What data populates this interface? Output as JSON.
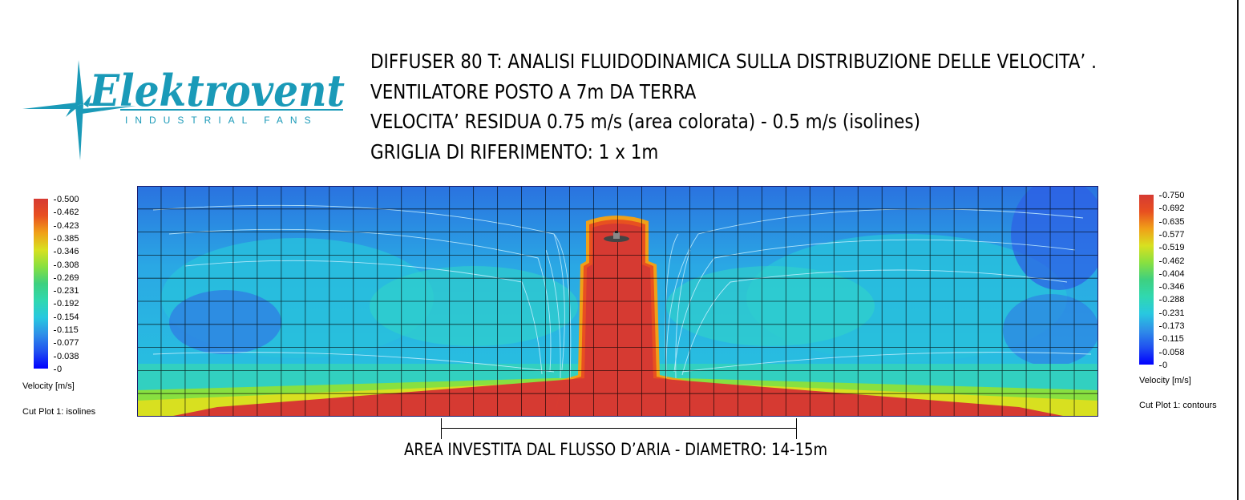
{
  "logo": {
    "brand": "Elektrovent",
    "tagline": "INDUSTRIAL FANS",
    "color": "#1a9ab8"
  },
  "header": {
    "line1": "DIFFUSER 80 T: ANALISI FLUIDODINAMICA SULLA DISTRIBUZIONE DELLE VELOCITA’ .",
    "line2": "VENTILATORE POSTO A 7m DA TERRA",
    "line3": "VELOCITA’ RESIDUA 0.75 m/s (area colorata) - 0.5 m/s (isolines)",
    "line4": "GRIGLIA DI RIFERIMENTO: 1 x 1m"
  },
  "legend_left": {
    "ticks": [
      "0.500",
      "0.462",
      "0.423",
      "0.385",
      "0.346",
      "0.308",
      "0.269",
      "0.231",
      "0.192",
      "0.154",
      "0.115",
      "0.077",
      "0.038",
      "0"
    ],
    "quantity": "Velocity [m/s]",
    "plot_label": "Cut Plot 1: isolines"
  },
  "legend_right": {
    "ticks": [
      "0.750",
      "0.692",
      "0.635",
      "0.577",
      "0.519",
      "0.462",
      "0.404",
      "0.346",
      "0.288",
      "0.231",
      "0.173",
      "0.115",
      "0.058",
      "0"
    ],
    "quantity": "Velocity [m/s]",
    "plot_label": "Cut Plot 1: contours"
  },
  "colormap": [
    "#0000ff",
    "#2050f0",
    "#2f8ee8",
    "#28c8e0",
    "#30d8b0",
    "#3ed080",
    "#88e040",
    "#d8e020",
    "#f0a018",
    "#e85020",
    "#d63a32"
  ],
  "caption": "AREA INVESTITA DAL FLUSSO D’ARIA - DIAMETRO: 14-15m"
}
